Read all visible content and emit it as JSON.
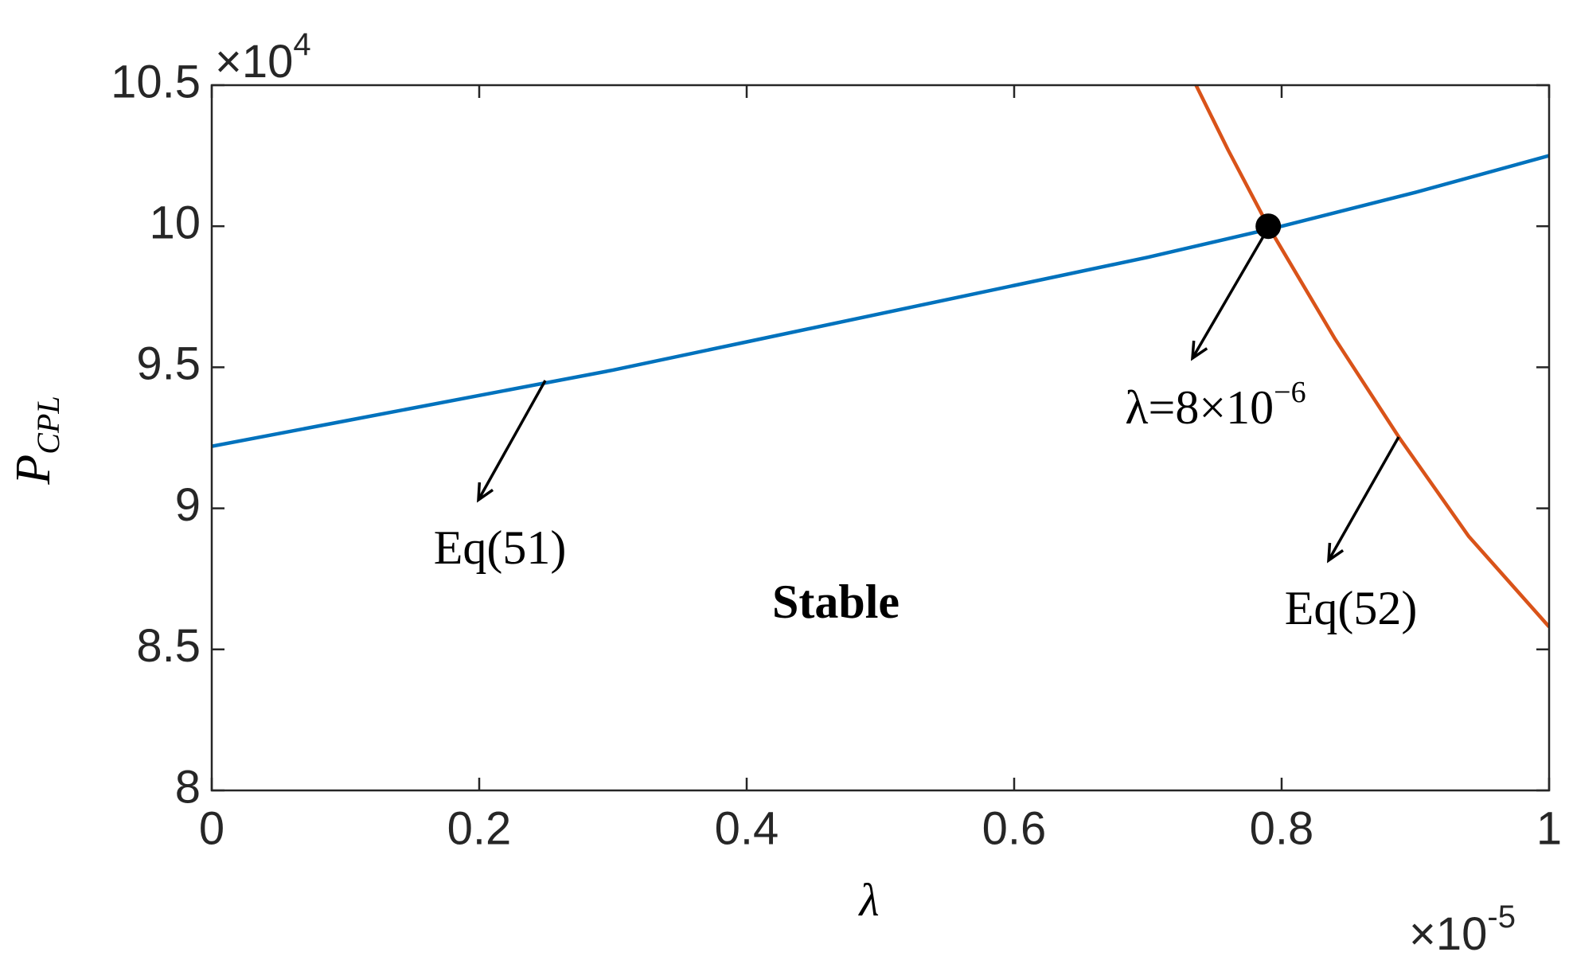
{
  "chart_data": {
    "type": "line",
    "xlabel": "λ",
    "ylabel": "P",
    "ylabel_subscript": "CPL",
    "x_multiplier": "×10",
    "x_multiplier_exponent": "-5",
    "y_multiplier": "×10",
    "y_multiplier_exponent": "4",
    "xlim": [
      0,
      1
    ],
    "ylim": [
      8,
      10.5
    ],
    "xticks": [
      0,
      0.2,
      0.4,
      0.6,
      0.8,
      1
    ],
    "yticks": [
      8,
      8.5,
      9,
      9.5,
      10,
      10.5
    ],
    "series": [
      {
        "color": "#0072bd",
        "x": [
          0,
          0.1,
          0.2,
          0.3,
          0.4,
          0.5,
          0.6,
          0.7,
          0.8,
          0.9,
          1.0
        ],
        "values": [
          9.22,
          9.31,
          9.4,
          9.49,
          9.59,
          9.69,
          9.79,
          9.89,
          10.0,
          10.12,
          10.25
        ]
      },
      {
        "color": "#d95319",
        "x": [
          0.736,
          0.76,
          0.79,
          0.84,
          0.888,
          0.94,
          1.0
        ],
        "values": [
          10.5,
          10.27,
          10.0,
          9.6,
          9.25,
          8.9,
          8.58
        ]
      }
    ],
    "intersection": {
      "x": 0.79,
      "y": 10.0,
      "color": "#000000"
    },
    "annotations": [
      {
        "text": "Eq(51)"
      },
      {
        "text": "Eq(52)"
      },
      {
        "text": "Stable"
      },
      {
        "text": "λ=8×10",
        "superscript": "−6"
      }
    ]
  }
}
